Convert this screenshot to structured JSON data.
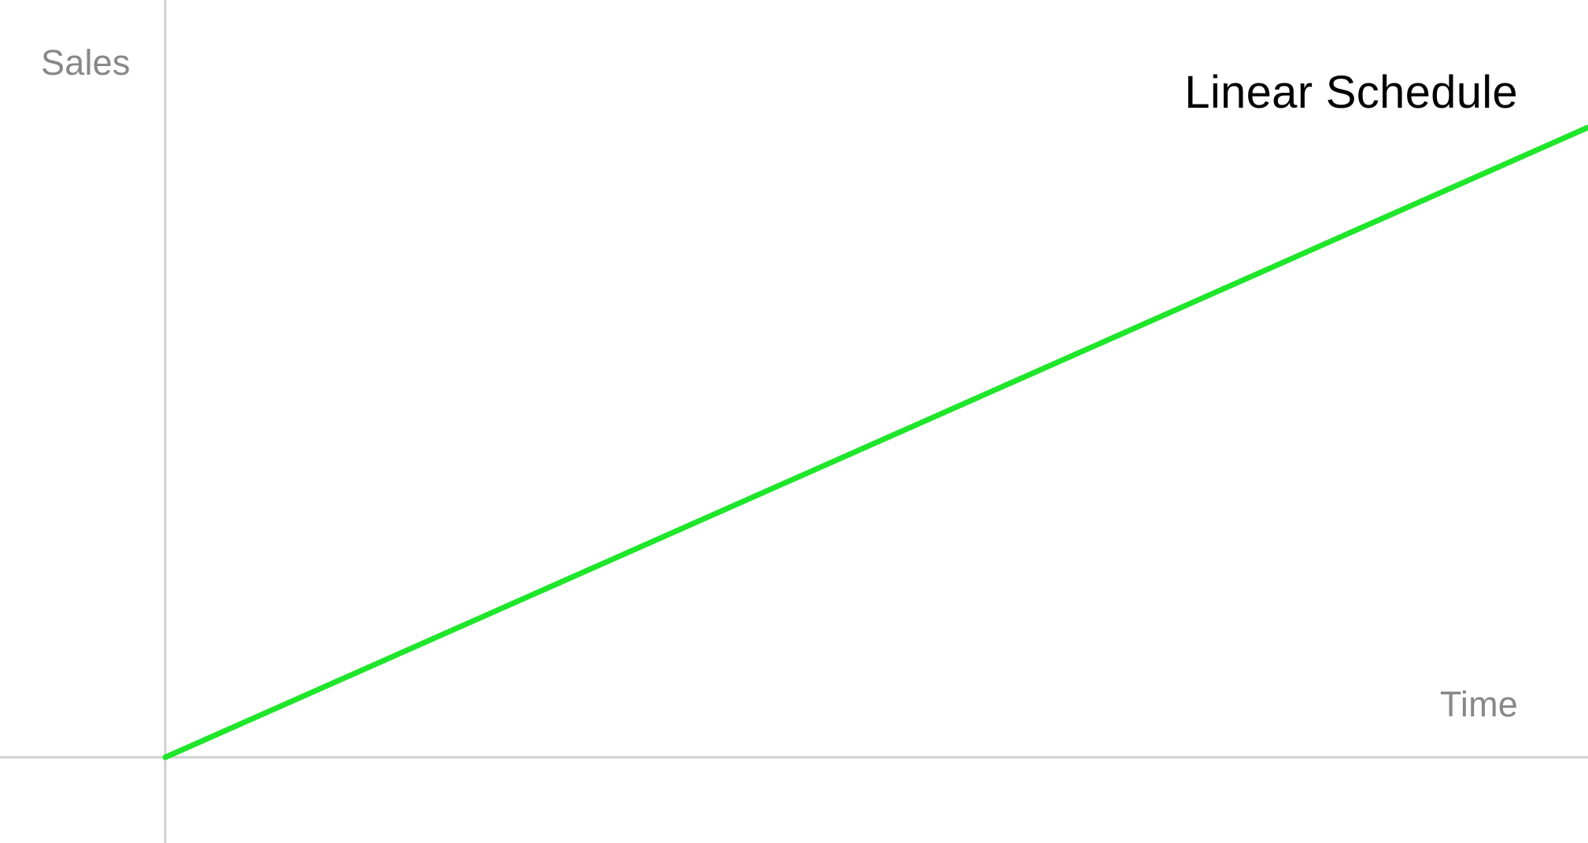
{
  "chart_data": {
    "type": "line",
    "title": "Linear Schedule",
    "xlabel": "Time",
    "ylabel": "Sales",
    "series": [
      {
        "x": [
          0,
          1
        ],
        "values": [
          0,
          1
        ]
      }
    ],
    "xlim": [
      0,
      1
    ],
    "ylim": [
      0,
      1
    ],
    "grid": false,
    "legend": "none",
    "colors": {
      "line": "#1ee62a",
      "axis": "#d0d0d0",
      "axis_label": "#888888",
      "title": "#000000"
    }
  }
}
